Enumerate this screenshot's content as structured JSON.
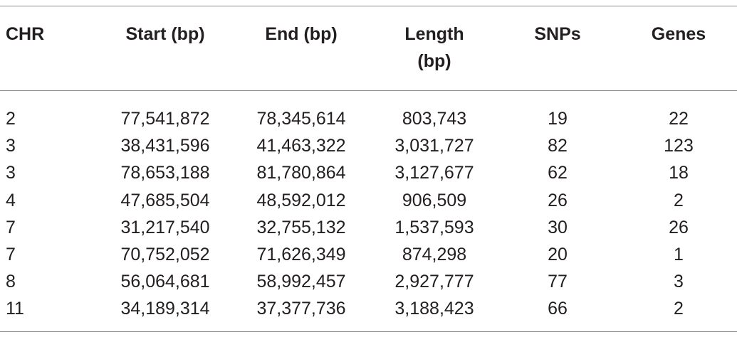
{
  "table": {
    "header": [
      "CHR",
      "Start (bp)",
      "End (bp)",
      "Length (bp)",
      "SNPs",
      "Genes"
    ],
    "rows": [
      [
        "2",
        "77,541,872",
        "78,345,614",
        "803,743",
        "19",
        "22"
      ],
      [
        "3",
        "38,431,596",
        "41,463,322",
        "3,031,727",
        "82",
        "123"
      ],
      [
        "3",
        "78,653,188",
        "81,780,864",
        "3,127,677",
        "62",
        "18"
      ],
      [
        "4",
        "47,685,504",
        "48,592,012",
        "906,509",
        "26",
        "2"
      ],
      [
        "7",
        "31,217,540",
        "32,755,132",
        "1,537,593",
        "30",
        "26"
      ],
      [
        "7",
        "70,752,052",
        "71,626,349",
        "874,298",
        "20",
        "1"
      ],
      [
        "8",
        "56,064,681",
        "58,992,457",
        "2,927,777",
        "77",
        "3"
      ],
      [
        "11",
        "34,189,314",
        "37,377,736",
        "3,188,423",
        "66",
        "2"
      ]
    ]
  }
}
